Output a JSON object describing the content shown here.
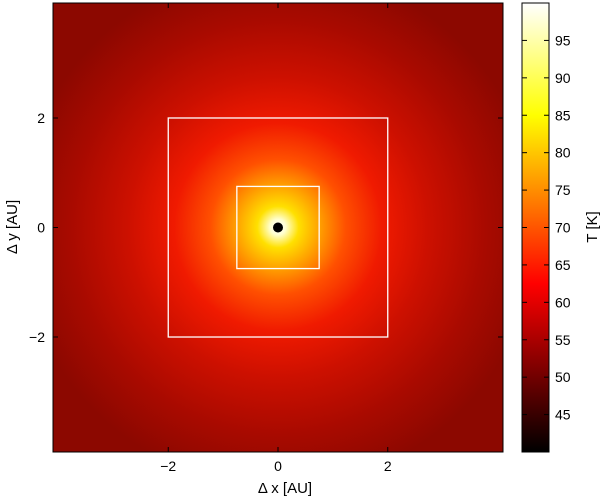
{
  "chart_data": {
    "type": "heatmap",
    "title": "",
    "xlabel": "Δ x [AU]",
    "ylabel": "Δ y [AU]",
    "xlim": [
      -4.1,
      4.1
    ],
    "ylim": [
      -4.1,
      4.1
    ],
    "x_ticks": [
      -2,
      0,
      2
    ],
    "y_ticks": [
      -2,
      0,
      2
    ],
    "grid": false,
    "field": {
      "description_units": "T [K]",
      "center": [
        0,
        0
      ],
      "peak_value": 100,
      "background_value": 50,
      "core_mask_radius": 0.08
    },
    "boxes": [
      {
        "x": [
          -2,
          2
        ],
        "y": [
          -2,
          2
        ],
        "color": "#ffffff"
      },
      {
        "x": [
          -0.75,
          0.75
        ],
        "y": [
          -0.75,
          0.75
        ],
        "color": "#ffffff"
      }
    ],
    "colorbar": {
      "label": "T [K]",
      "range": [
        40,
        100
      ],
      "ticks": [
        45,
        50,
        55,
        60,
        65,
        70,
        75,
        80,
        85,
        90,
        95
      ],
      "colormap": "hot"
    }
  }
}
